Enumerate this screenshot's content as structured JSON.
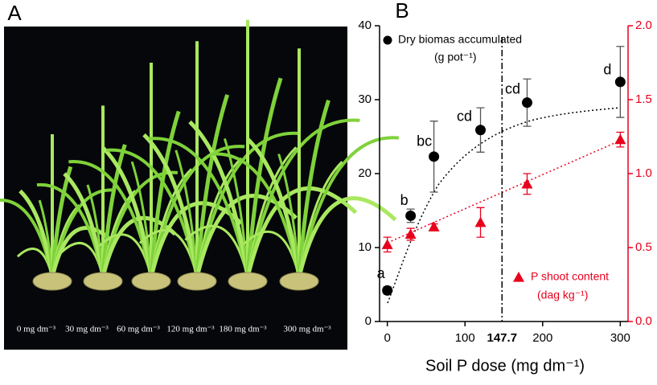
{
  "photo_panel": {
    "label": "A",
    "captions": [
      "0 mg dm⁻³",
      "30 mg dm⁻³",
      "60 mg dm⁻³",
      "120 mg dm⁻³",
      "180 mg dm⁻³",
      "300 mg dm⁻³"
    ]
  },
  "chart_data": {
    "type": "scatter",
    "panel_label": "B",
    "x_label": "Soil P dose (mg dm⁻¹)",
    "x": [
      0,
      30,
      60,
      120,
      180,
      300
    ],
    "xlim": [
      -10,
      310
    ],
    "xticks": [
      0,
      100,
      200,
      300
    ],
    "vline": 147.7,
    "ylim": [
      0,
      40
    ],
    "yticks": [
      0,
      10,
      20,
      30,
      40
    ],
    "y2lim": [
      0,
      2
    ],
    "y2ticks": [
      {
        "value": 0,
        "label": "0.0"
      },
      0.5,
      {
        "value": 1,
        "label": "1.0"
      },
      1.5,
      {
        "value": 2,
        "label": "2.0"
      }
    ],
    "series": [
      {
        "name": "Dry biomas accumulated",
        "unit": "(g pot⁻¹)",
        "color": "#000000",
        "marker": "circle",
        "values": [
          4.2,
          14.3,
          22.3,
          25.9,
          29.6,
          32.4
        ],
        "errors": [
          0.5,
          0.9,
          4.8,
          3.0,
          3.2,
          4.8
        ],
        "letters": [
          "a",
          "b",
          "bc",
          "cd",
          "cd",
          "d"
        ]
      },
      {
        "name": "P shoot content",
        "unit": "(dag kg⁻¹)",
        "color": "#e8001c",
        "marker": "triangle",
        "axis": "y2",
        "values": [
          0.52,
          0.59,
          0.64,
          0.67,
          0.93,
          1.23
        ],
        "errors": [
          0.05,
          0.04,
          0.02,
          0.1,
          0.07,
          0.05
        ]
      }
    ]
  }
}
